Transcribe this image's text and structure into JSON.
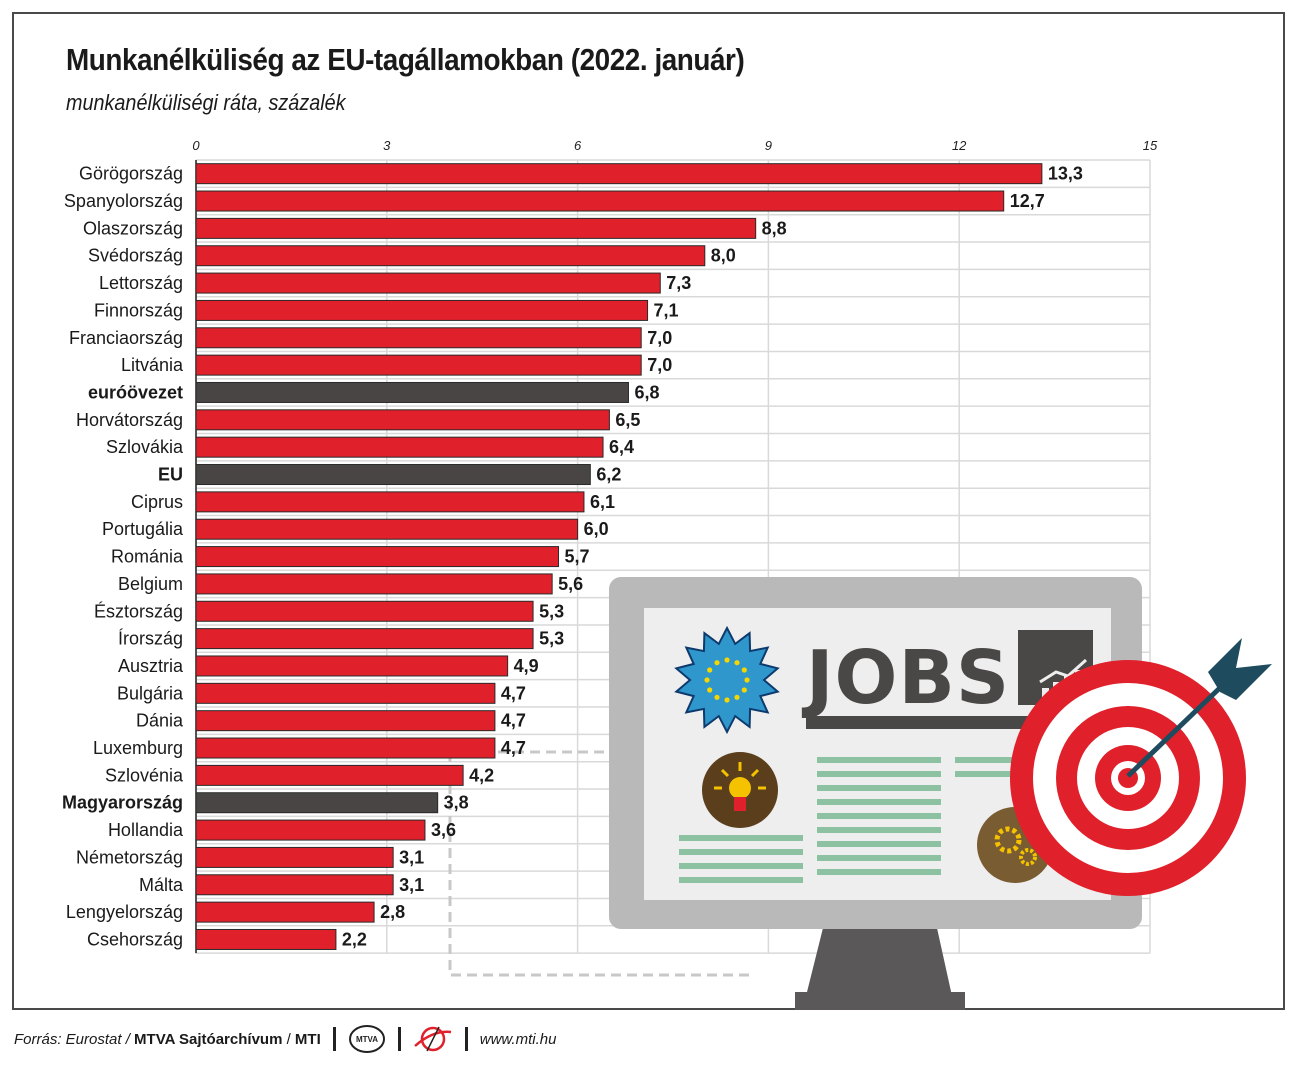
{
  "title": "Munkanélküliség az EU-tagállamokban (2022. január)",
  "subtitle": "munkanélküliségi ráta, százalék",
  "colors": {
    "country_bar": "#e0202a",
    "aggregate_bar": "#4a4545",
    "grid": "#d9d9d9",
    "frame": "#4a4a4a"
  },
  "chart_data": {
    "type": "bar",
    "orientation": "horizontal",
    "xlim": [
      0,
      15
    ],
    "ticks": [
      "0",
      "3",
      "6",
      "9",
      "12",
      "15"
    ],
    "grid": true,
    "categories": [
      "Görögország",
      "Spanyolország",
      "Olaszország",
      "Svédország",
      "Lettország",
      "Finnország",
      "Franciaország",
      "Litvánia",
      "euróövezet",
      "Horvátország",
      "Szlovákia",
      "EU",
      "Ciprus",
      "Portugália",
      "Románia",
      "Belgium",
      "Észtország",
      "Írország",
      "Ausztria",
      "Bulgária",
      "Dánia",
      "Luxemburg",
      "Szlovénia",
      "Magyarország",
      "Hollandia",
      "Németország",
      "Málta",
      "Lengyelország",
      "Csehország"
    ],
    "values": [
      13.3,
      12.7,
      8.8,
      8.0,
      7.3,
      7.1,
      7.0,
      7.0,
      6.8,
      6.5,
      6.4,
      6.2,
      6.1,
      6.0,
      5.7,
      5.6,
      5.3,
      5.3,
      4.9,
      4.7,
      4.7,
      4.7,
      4.2,
      3.8,
      3.6,
      3.1,
      3.1,
      2.8,
      2.2
    ],
    "value_labels": [
      "13,3",
      "12,7",
      "8,8",
      "8,0",
      "7,3",
      "7,1",
      "7,0",
      "7,0",
      "6,8",
      "6,5",
      "6,4",
      "6,2",
      "6,1",
      "6,0",
      "5,7",
      "5,6",
      "5,3",
      "5,3",
      "4,9",
      "4,7",
      "4,7",
      "4,7",
      "4,2",
      "3,8",
      "3,6",
      "3,1",
      "3,1",
      "2,8",
      "2,2"
    ],
    "highlighted": [
      "euróövezet",
      "EU",
      "Magyarország"
    ]
  },
  "illustration": {
    "jobs_text": "JOBS",
    "icons": [
      "eu-badge-icon",
      "chart-arrow-icon",
      "lightbulb-icon",
      "gears-icon",
      "target-icon",
      "dart-icon",
      "monitor-icon"
    ]
  },
  "footer": {
    "source_prefix": "Forrás: Eurostat /",
    "source_bold": "MTVA Sajtóarchívum",
    "source_slash": "/",
    "source_mti": "MTI",
    "mtva_logo": "MTVA",
    "url": "www.mti.hu"
  }
}
